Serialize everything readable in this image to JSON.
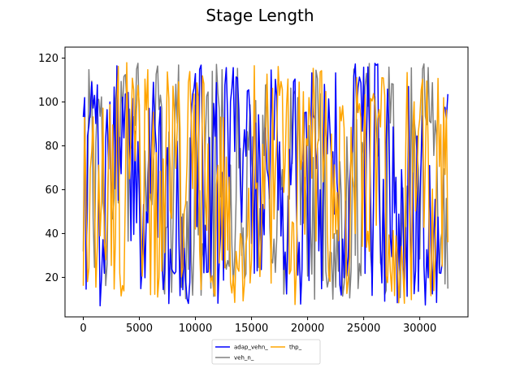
{
  "chart_data": {
    "type": "line",
    "title": "Stage Length",
    "xlabel": "",
    "ylabel": "",
    "xlim": [
      -1630,
      34300
    ],
    "ylim": [
      2,
      125
    ],
    "xticks": [
      0,
      5000,
      10000,
      15000,
      20000,
      25000,
      30000
    ],
    "yticks": [
      20,
      40,
      60,
      80,
      100,
      120
    ],
    "grid": false,
    "legend": {
      "placement": "below",
      "columns": 2
    },
    "x_range": [
      0,
      32500
    ],
    "series": [
      {
        "name": "adap_vehn_",
        "color": "#0000ff",
        "note_values": "signal oscillates between ~7 and ~118 across the full x range",
        "value_range": [
          7,
          118
        ],
        "step": 125
      },
      {
        "name": "veh_n_",
        "color": "#808080",
        "value_range": [
          10,
          118
        ],
        "step": 125
      },
      {
        "name": "thp_",
        "color": "#ffa500",
        "value_range": [
          7,
          118
        ],
        "step": 125
      }
    ]
  }
}
